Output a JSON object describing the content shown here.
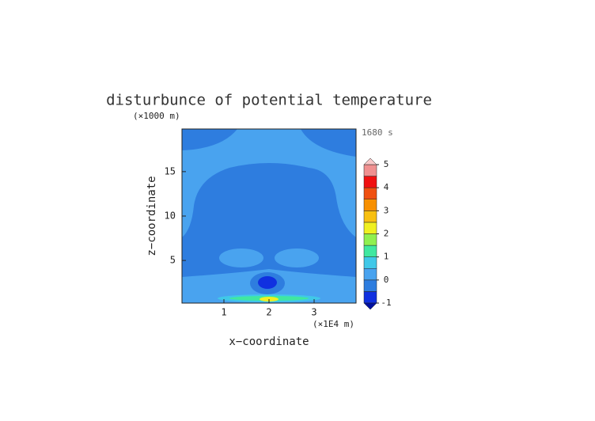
{
  "chart_data": {
    "type": "contour",
    "title": "disturbunce of potential temperature",
    "y_unit": "(×1000 m)",
    "x_unit": "(×1E4 m)",
    "time_label": "1680 s",
    "xlabel": "x−coordinate",
    "ylabel": "z−coordinate",
    "xlim": [
      0.07,
      3.93
    ],
    "xticks": [
      1,
      2,
      3
    ],
    "ylim": [
      0.2,
      19.8
    ],
    "yticks": [
      5,
      10,
      15
    ],
    "levels": [
      -1,
      -0.5,
      0,
      0.5,
      1,
      1.5,
      2,
      2.5,
      3,
      3.5,
      4,
      4.5,
      5
    ],
    "colors": [
      "#1030e0",
      "#2e7ddf",
      "#49a3ef",
      "#40c8e8",
      "#40e8a0",
      "#90f050",
      "#f0f020",
      "#f8c010",
      "#f89000",
      "#f05010",
      "#f01010",
      "#f09090"
    ],
    "under_color": "#0010a0",
    "over_color": "#f8c8c8",
    "colorbar_ticks": [
      -1,
      0,
      1,
      2,
      3,
      4,
      5
    ]
  }
}
